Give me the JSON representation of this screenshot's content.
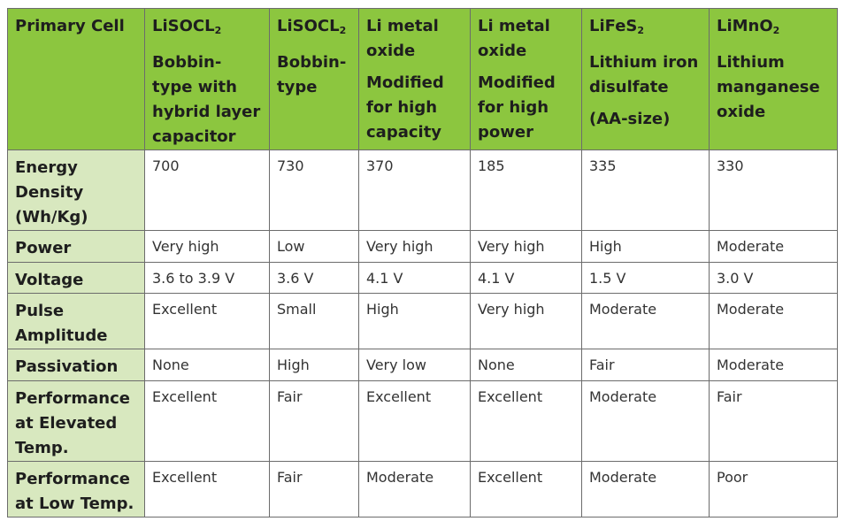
{
  "header": {
    "row_label": "Primary Cell",
    "columns": [
      {
        "name": "LiSOCL",
        "sub": "2",
        "lines": [
          "Bobbin-",
          "type with",
          "hybrid layer",
          "capacitor"
        ]
      },
      {
        "name": "LiSOCL",
        "sub": "2",
        "lines": [
          "Bobbin-",
          "type"
        ]
      },
      {
        "name": "Li metal",
        "name2": "oxide",
        "lines": [
          "Modified",
          "for high",
          "capacity"
        ]
      },
      {
        "name": "Li metal",
        "name2": "oxide",
        "lines": [
          "Modified",
          "for high",
          "power"
        ]
      },
      {
        "name": "LiFeS",
        "sub": "2",
        "lines": [
          "Lithium iron",
          "disulfate"
        ],
        "extra": "(AA-size)"
      },
      {
        "name": "LiMnO",
        "sub": "2",
        "lines": [
          "Lithium",
          "manganese",
          "oxide"
        ]
      }
    ]
  },
  "rows": [
    {
      "label": [
        "Energy",
        "Density",
        "(Wh/Kg)"
      ],
      "cells": [
        "700",
        "730",
        "370",
        "185",
        "335",
        "330"
      ]
    },
    {
      "label": [
        "Power"
      ],
      "cells": [
        "Very high",
        "Low",
        "Very high",
        "Very high",
        "High",
        "Moderate"
      ]
    },
    {
      "label": [
        "Voltage"
      ],
      "cells": [
        "3.6 to 3.9 V",
        "3.6 V",
        "4.1 V",
        "4.1 V",
        "1.5 V",
        "3.0 V"
      ]
    },
    {
      "label": [
        "Pulse",
        "Amplitude"
      ],
      "cells": [
        "Excellent",
        "Small",
        "High",
        "Very high",
        "Moderate",
        "Moderate"
      ]
    },
    {
      "label": [
        "Passivation"
      ],
      "cells": [
        "None",
        "High",
        "Very low",
        "None",
        "Fair",
        "Moderate"
      ]
    },
    {
      "label": [
        "Performance",
        "at Elevated",
        "Temp."
      ],
      "cells": [
        "Excellent",
        "Fair",
        "Excellent",
        "Excellent",
        "Moderate",
        "Fair"
      ]
    },
    {
      "label": [
        "Performance",
        "at Low Temp."
      ],
      "cells": [
        "Excellent",
        "Fair",
        "Moderate",
        "Excellent",
        "Moderate",
        "Poor"
      ]
    }
  ],
  "colors": {
    "header_bg": "#8cc63f",
    "label_bg": "#d8e8bf",
    "border": "#6c6c6c"
  }
}
